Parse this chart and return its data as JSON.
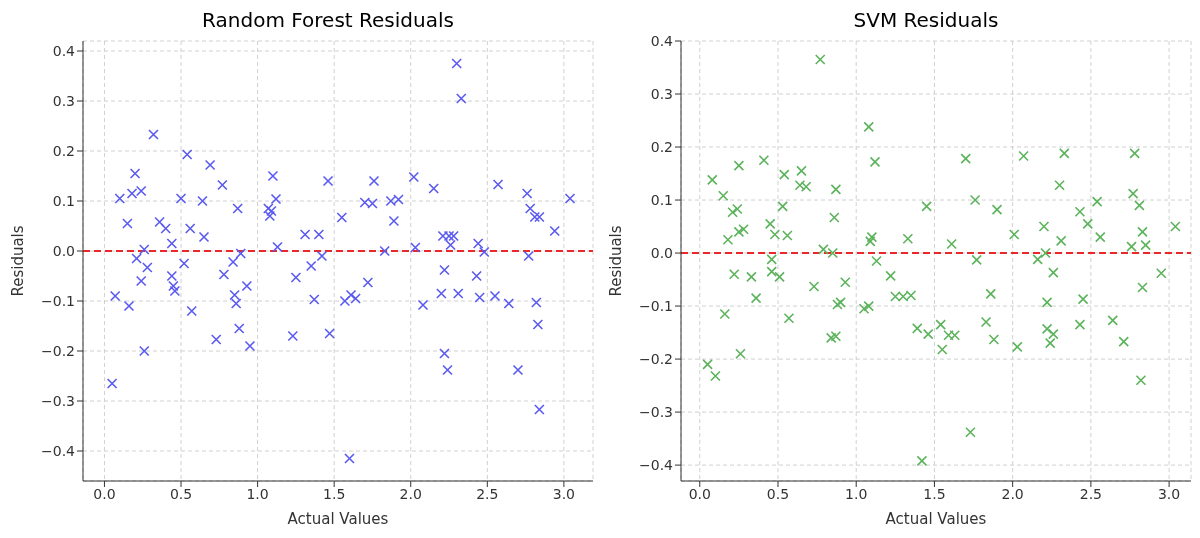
{
  "chart_data": [
    {
      "type": "scatter",
      "title": "Random Forest Residuals",
      "xlabel": "Actual Values",
      "ylabel": "Residuals",
      "marker": "cross",
      "grid": true,
      "xlim": [
        -0.14,
        3.19
      ],
      "ylim": [
        -0.46,
        0.42
      ],
      "xticks": [
        {
          "value": 0,
          "label": "0.0"
        },
        {
          "value": 0.5,
          "label": "0.5"
        },
        {
          "value": 1,
          "label": "1.0"
        },
        {
          "value": 1.5,
          "label": "1.5"
        },
        {
          "value": 2,
          "label": "2.0"
        },
        {
          "value": 2.5,
          "label": "2.5"
        },
        {
          "value": 3,
          "label": "3.0"
        }
      ],
      "yticks": [
        {
          "value": -0.4,
          "label": "−0.4"
        },
        {
          "value": -0.3,
          "label": "−0.3"
        },
        {
          "value": -0.2,
          "label": "−0.2"
        },
        {
          "value": -0.1,
          "label": "−0.1"
        },
        {
          "value": 0,
          "label": "0.0"
        },
        {
          "value": 0.1,
          "label": "0.1"
        },
        {
          "value": 0.2,
          "label": "0.2"
        },
        {
          "value": 0.3,
          "label": "0.3"
        },
        {
          "value": 0.4,
          "label": "0.4"
        }
      ],
      "ref_lines": [
        {
          "axis": "y",
          "value": 0,
          "color": "#e8282a",
          "line_style": "dashed"
        }
      ],
      "series": [
        {
          "color": "#5a5af0",
          "x": [
            0.05,
            0.07,
            0.1,
            0.15,
            0.16,
            0.18,
            0.2,
            0.21,
            0.24,
            0.24,
            0.26,
            0.26,
            0.28,
            0.32,
            0.36,
            0.4,
            0.44,
            0.44,
            0.45,
            0.46,
            0.5,
            0.52,
            0.54,
            0.56,
            0.57,
            0.64,
            0.65,
            0.69,
            0.73,
            0.77,
            0.78,
            0.84,
            0.85,
            0.86,
            0.87,
            0.88,
            0.89,
            0.93,
            0.95,
            1.07,
            1.08,
            1.09,
            1.1,
            1.12,
            1.13,
            1.23,
            1.25,
            1.31,
            1.35,
            1.37,
            1.4,
            1.42,
            1.46,
            1.47,
            1.55,
            1.57,
            1.6,
            1.61,
            1.64,
            1.7,
            1.72,
            1.75,
            1.76,
            1.83,
            1.87,
            1.89,
            1.92,
            2.02,
            2.03,
            2.08,
            2.15,
            2.2,
            2.21,
            2.22,
            2.22,
            2.24,
            2.25,
            2.26,
            2.28,
            2.3,
            2.31,
            2.33,
            2.43,
            2.44,
            2.45,
            2.48,
            2.55,
            2.57,
            2.64,
            2.7,
            2.76,
            2.77,
            2.78,
            2.81,
            2.82,
            2.83,
            2.84,
            2.84,
            2.94,
            3.04
          ],
          "values": [
            -0.265,
            -0.09,
            0.105,
            0.055,
            -0.11,
            0.115,
            0.155,
            -0.015,
            0.12,
            -0.06,
            0.003,
            -0.2,
            -0.033,
            0.233,
            0.058,
            0.045,
            0.015,
            -0.05,
            -0.07,
            -0.08,
            0.105,
            -0.025,
            0.193,
            0.045,
            -0.12,
            0.1,
            0.028,
            0.172,
            -0.177,
            0.132,
            -0.047,
            -0.022,
            -0.088,
            -0.105,
            0.085,
            -0.155,
            -0.005,
            -0.07,
            -0.19,
            0.085,
            0.07,
            0.08,
            0.15,
            0.104,
            0.008,
            -0.17,
            -0.053,
            0.033,
            -0.03,
            -0.097,
            0.033,
            -0.01,
            0.14,
            -0.165,
            0.067,
            -0.1,
            -0.415,
            -0.088,
            -0.095,
            0.097,
            -0.063,
            0.095,
            0.14,
            0.0,
            0.1,
            0.06,
            0.103,
            0.148,
            0.007,
            -0.108,
            0.125,
            -0.085,
            0.03,
            -0.038,
            -0.205,
            -0.238,
            0.03,
            0.012,
            0.03,
            0.375,
            -0.085,
            0.305,
            -0.05,
            0.015,
            -0.093,
            -0.002,
            -0.09,
            0.133,
            -0.105,
            -0.238,
            0.115,
            -0.01,
            0.085,
            0.068,
            -0.103,
            -0.147,
            0.068,
            -0.317,
            0.04,
            0.105
          ]
        }
      ]
    },
    {
      "type": "scatter",
      "title": "SVM Residuals",
      "xlabel": "Actual Values",
      "ylabel": "Residuals",
      "marker": "cross",
      "grid": true,
      "xlim": [
        -0.12,
        3.14
      ],
      "ylim": [
        -0.43,
        0.4
      ],
      "xticks": [
        {
          "value": 0,
          "label": "0.0"
        },
        {
          "value": 0.5,
          "label": "0.5"
        },
        {
          "value": 1,
          "label": "1.0"
        },
        {
          "value": 1.5,
          "label": "1.5"
        },
        {
          "value": 2,
          "label": "2.0"
        },
        {
          "value": 2.5,
          "label": "2.5"
        },
        {
          "value": 3,
          "label": "3.0"
        }
      ],
      "yticks": [
        {
          "value": -0.4,
          "label": "−0.4"
        },
        {
          "value": -0.3,
          "label": "−0.3"
        },
        {
          "value": -0.2,
          "label": "−0.2"
        },
        {
          "value": -0.1,
          "label": "−0.1"
        },
        {
          "value": 0,
          "label": "0.0"
        },
        {
          "value": 0.1,
          "label": "0.1"
        },
        {
          "value": 0.2,
          "label": "0.2"
        },
        {
          "value": 0.3,
          "label": "0.3"
        },
        {
          "value": 0.4,
          "label": "0.4"
        }
      ],
      "ref_lines": [
        {
          "axis": "y",
          "value": 0,
          "color": "#e8282a",
          "line_style": "dashed"
        }
      ],
      "series": [
        {
          "color": "#5cb35c",
          "x": [
            0.05,
            0.08,
            0.1,
            0.15,
            0.16,
            0.18,
            0.21,
            0.22,
            0.24,
            0.25,
            0.25,
            0.26,
            0.28,
            0.33,
            0.36,
            0.41,
            0.45,
            0.46,
            0.46,
            0.48,
            0.51,
            0.53,
            0.54,
            0.56,
            0.57,
            0.64,
            0.65,
            0.68,
            0.73,
            0.77,
            0.79,
            0.84,
            0.85,
            0.86,
            0.87,
            0.87,
            0.88,
            0.9,
            0.93,
            1.05,
            1.08,
            1.08,
            1.09,
            1.1,
            1.12,
            1.13,
            1.22,
            1.25,
            1.3,
            1.33,
            1.35,
            1.39,
            1.42,
            1.45,
            1.46,
            1.54,
            1.55,
            1.59,
            1.61,
            1.63,
            1.7,
            1.73,
            1.76,
            1.77,
            1.83,
            1.86,
            1.88,
            1.9,
            2.01,
            2.03,
            2.07,
            2.16,
            2.2,
            2.21,
            2.22,
            2.22,
            2.24,
            2.26,
            2.26,
            2.3,
            2.31,
            2.33,
            2.43,
            2.43,
            2.45,
            2.48,
            2.54,
            2.56,
            2.64,
            2.71,
            2.76,
            2.77,
            2.78,
            2.81,
            2.82,
            2.83,
            2.83,
            2.85,
            2.95,
            3.04
          ],
          "values": [
            -0.21,
            0.138,
            -0.232,
            0.108,
            -0.115,
            0.025,
            0.077,
            -0.04,
            0.083,
            0.165,
            0.04,
            -0.19,
            0.045,
            -0.045,
            -0.085,
            0.175,
            0.055,
            -0.012,
            -0.035,
            0.035,
            -0.045,
            0.088,
            0.148,
            0.033,
            -0.123,
            0.128,
            0.155,
            0.125,
            -0.063,
            0.365,
            0.007,
            -0.16,
            0.0,
            0.067,
            0.12,
            -0.157,
            -0.097,
            -0.093,
            -0.055,
            -0.105,
            0.238,
            -0.1,
            0.022,
            0.03,
            0.172,
            -0.015,
            -0.043,
            -0.082,
            -0.082,
            0.027,
            -0.08,
            -0.142,
            -0.392,
            0.088,
            -0.153,
            -0.135,
            -0.182,
            -0.155,
            0.017,
            -0.155,
            0.178,
            -0.338,
            0.1,
            -0.013,
            -0.13,
            -0.077,
            -0.163,
            0.082,
            0.035,
            -0.177,
            0.183,
            -0.012,
            0.05,
            0.0,
            -0.143,
            -0.093,
            -0.17,
            -0.037,
            -0.153,
            0.128,
            0.023,
            0.188,
            0.078,
            -0.135,
            -0.087,
            0.055,
            0.097,
            0.03,
            -0.127,
            -0.167,
            0.012,
            0.112,
            0.188,
            0.09,
            -0.24,
            0.04,
            -0.065,
            0.015,
            -0.038,
            0.05
          ]
        }
      ]
    }
  ]
}
